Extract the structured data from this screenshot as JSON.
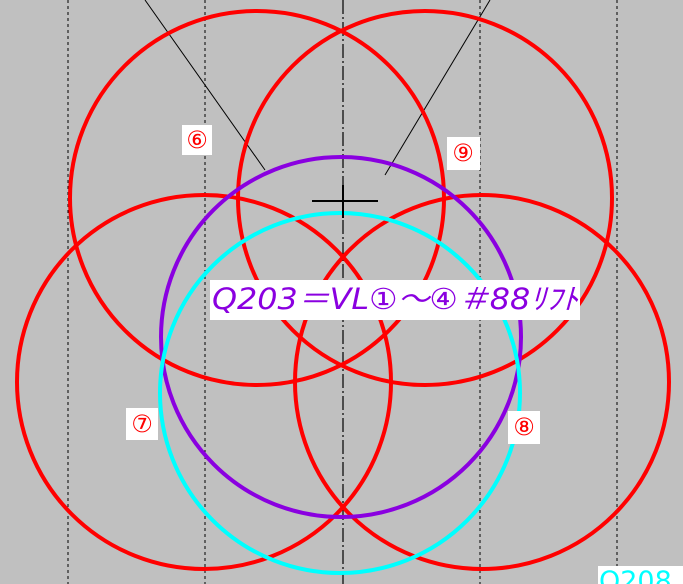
{
  "labels": {
    "circle_6": "⑥",
    "circle_9": "⑨",
    "circle_7": "⑦",
    "circle_8": "⑧"
  },
  "main_label": "Q203＝VL①～④＃88ﾘﾌﾄ",
  "corner_label": "Q208"
}
